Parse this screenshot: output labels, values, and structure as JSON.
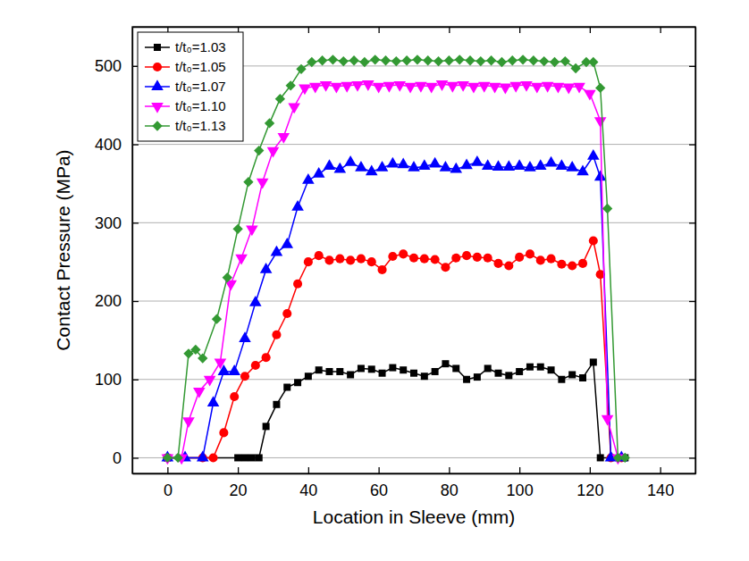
{
  "chart_data": {
    "type": "line",
    "x_label": "Location in Sleeve  (mm)",
    "y_label": "Contact Pressure  (MPa)",
    "xlim": [
      -10,
      150
    ],
    "xticks": [
      0,
      20,
      40,
      60,
      80,
      100,
      120,
      140
    ],
    "ylim": [
      -20,
      550
    ],
    "yticks": [
      0,
      100,
      200,
      300,
      400,
      500
    ],
    "grid": true,
    "legend": "upper left",
    "series": [
      {
        "name": "t/t₀=1.03",
        "color": "#000000",
        "marker": "square",
        "x": [
          0,
          20,
          22,
          24,
          26,
          28,
          31,
          34,
          37,
          40,
          43,
          46,
          49,
          52,
          55,
          58,
          61,
          64,
          67,
          70,
          73,
          76,
          79,
          82,
          85,
          88,
          91,
          94,
          97,
          100,
          103,
          106,
          109,
          112,
          115,
          118,
          121,
          123,
          130
        ],
        "values": [
          0,
          0,
          0,
          0,
          0,
          40,
          68,
          90,
          96,
          104,
          112,
          110,
          110,
          106,
          114,
          113,
          108,
          115,
          112,
          108,
          104,
          110,
          120,
          114,
          100,
          103,
          114,
          108,
          105,
          110,
          116,
          116,
          112,
          100,
          106,
          102,
          122,
          0,
          0
        ]
      },
      {
        "name": "t/t₀=1.05",
        "color": "#ff0000",
        "marker": "circle",
        "x": [
          0,
          10,
          13,
          16,
          19,
          22,
          25,
          28,
          31,
          34,
          37,
          40,
          43,
          46,
          49,
          52,
          55,
          58,
          61,
          64,
          67,
          70,
          73,
          76,
          79,
          82,
          85,
          88,
          91,
          94,
          97,
          100,
          103,
          106,
          109,
          112,
          115,
          118,
          121,
          123,
          126,
          129
        ],
        "values": [
          0,
          0,
          0,
          32,
          78,
          104,
          118,
          128,
          157,
          184,
          222,
          250,
          258,
          252,
          254,
          252,
          254,
          250,
          240,
          257,
          260,
          255,
          254,
          253,
          243,
          255,
          258,
          256,
          255,
          248,
          245,
          256,
          260,
          252,
          254,
          247,
          245,
          248,
          277,
          234,
          0,
          0
        ]
      },
      {
        "name": "t/t₀=1.07",
        "color": "#0000ff",
        "marker": "triangle-up",
        "x": [
          0,
          5,
          10,
          13,
          16,
          19,
          22,
          25,
          28,
          31,
          34,
          37,
          40,
          43,
          46,
          49,
          52,
          55,
          58,
          61,
          64,
          67,
          70,
          73,
          76,
          79,
          82,
          85,
          88,
          91,
          94,
          97,
          100,
          103,
          106,
          109,
          112,
          115,
          118,
          121,
          123,
          126,
          129
        ],
        "values": [
          0,
          0,
          0,
          70,
          110,
          110,
          152,
          198,
          240,
          262,
          272,
          320,
          354,
          362,
          372,
          368,
          377,
          370,
          365,
          370,
          375,
          374,
          370,
          372,
          375,
          370,
          368,
          373,
          377,
          372,
          371,
          371,
          372,
          370,
          372,
          376,
          372,
          370,
          365,
          385,
          358,
          0,
          0
        ]
      },
      {
        "name": "t/t₀=1.10",
        "color": "#ff00ff",
        "marker": "triangle-down",
        "x": [
          0,
          4,
          6,
          9,
          12,
          15,
          18,
          21,
          24,
          27,
          30,
          33,
          36,
          39,
          42,
          45,
          48,
          51,
          54,
          57,
          60,
          63,
          66,
          69,
          72,
          75,
          78,
          81,
          84,
          87,
          90,
          93,
          96,
          99,
          102,
          105,
          108,
          111,
          114,
          117,
          120,
          123,
          125,
          128
        ],
        "values": [
          0,
          0,
          47,
          85,
          100,
          122,
          222,
          255,
          292,
          352,
          392,
          410,
          448,
          472,
          474,
          476,
          474,
          475,
          476,
          477,
          474,
          475,
          476,
          474,
          475,
          474,
          477,
          475,
          476,
          474,
          475,
          474,
          473,
          475,
          476,
          474,
          475,
          474,
          473,
          474,
          465,
          430,
          50,
          0
        ]
      },
      {
        "name": "t/t₀=1.13",
        "color": "#339933",
        "marker": "diamond",
        "x": [
          0,
          3,
          6,
          8,
          10,
          14,
          17,
          20,
          23,
          26,
          29,
          32,
          35,
          38,
          41,
          44,
          47,
          50,
          53,
          56,
          59,
          62,
          65,
          68,
          71,
          74,
          77,
          80,
          83,
          86,
          89,
          92,
          95,
          98,
          101,
          104,
          107,
          110,
          113,
          116,
          119,
          121,
          123,
          125,
          128,
          130
        ],
        "values": [
          0,
          0,
          133,
          138,
          127,
          177,
          230,
          292,
          352,
          392,
          427,
          458,
          475,
          496,
          505,
          507,
          508,
          506,
          507,
          505,
          508,
          507,
          506,
          507,
          508,
          507,
          506,
          507,
          508,
          507,
          506,
          507,
          505,
          507,
          508,
          507,
          506,
          505,
          506,
          497,
          505,
          505,
          472,
          318,
          0,
          0
        ]
      }
    ]
  }
}
